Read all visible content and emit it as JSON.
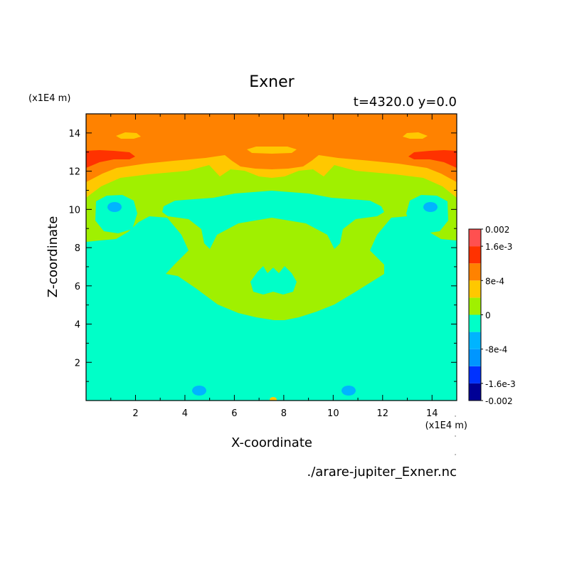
{
  "chart_data": {
    "type": "heatmap",
    "title": "Exner",
    "subtitle": "t=4320.0 y=0.0",
    "xlabel": "X-coordinate",
    "ylabel": "Z-coordinate",
    "x_scale_label": "(x1E4 m)",
    "y_scale_label": "(x1E4 m)",
    "xlim": [
      0,
      15
    ],
    "ylim": [
      0,
      15
    ],
    "x_ticks": [
      2,
      4,
      6,
      8,
      10,
      12,
      14
    ],
    "y_ticks": [
      2,
      4,
      6,
      8,
      10,
      12,
      14
    ],
    "footer": "./arare-jupiter_Exner.nc",
    "levels": [
      -0.002,
      -0.0016,
      -0.0012,
      -0.0008,
      -0.0004,
      0,
      0.0004,
      0.0008,
      0.0012,
      0.0016,
      0.002
    ],
    "colorbar_labels": [
      {
        "value": 0.002,
        "text": "0.002"
      },
      {
        "value": 0.0016,
        "text": "1.6e-3"
      },
      {
        "value": 0.0008,
        "text": "8e-4"
      },
      {
        "value": 0,
        "text": "0"
      },
      {
        "value": -0.0008,
        "text": "-8e-4"
      },
      {
        "value": -0.0016,
        "text": "-1.6e-3"
      },
      {
        "value": -0.002,
        "text": "-0.002"
      }
    ],
    "colors": [
      "#000096",
      "#0032ff",
      "#0096ff",
      "#00b4ff",
      "#00ffc8",
      "#a0f000",
      "#ffc800",
      "#ff8200",
      "#ff3200",
      "#ff5050"
    ]
  }
}
